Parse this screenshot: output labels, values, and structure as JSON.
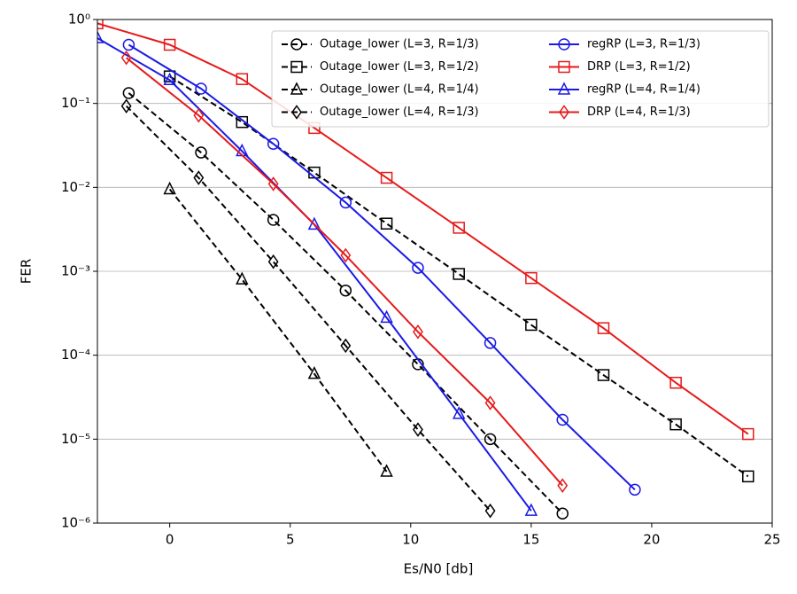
{
  "chart_data": {
    "type": "line",
    "x_label": "Es/N0 [db]",
    "y_label": "FER",
    "xlim": [
      -3,
      25
    ],
    "xticks": [
      0,
      5,
      10,
      15,
      20,
      25
    ],
    "ylim": [
      1e-06,
      1
    ],
    "y_scale": "log",
    "yticks": [
      {
        "value": 1e-06,
        "label": "10⁻⁶"
      },
      {
        "value": 1e-05,
        "label": "10⁻⁵"
      },
      {
        "value": 0.0001,
        "label": "10⁻⁴"
      },
      {
        "value": 0.001,
        "label": "10⁻³"
      },
      {
        "value": 0.01,
        "label": "10⁻²"
      },
      {
        "value": 0.1,
        "label": "10⁻¹"
      },
      {
        "value": 1,
        "label": "10⁰"
      }
    ],
    "grid": "y",
    "legend": "upper right",
    "series": [
      {
        "name": "Outage_lower (L=3, R=1/3)",
        "color": "#000000",
        "linestyle": "dashed",
        "marker": "circle",
        "x": [
          -1.7,
          1.3,
          4.3,
          7.3,
          10.3,
          13.3,
          16.3
        ],
        "values": [
          0.133,
          0.026,
          0.0041,
          0.00059,
          7.8e-05,
          1e-05,
          1.3e-06
        ]
      },
      {
        "name": "Outage_lower (L=3, R=1/2)",
        "color": "#000000",
        "linestyle": "dashed",
        "marker": "square",
        "x": [
          0,
          3,
          6,
          9,
          12,
          15,
          18,
          21,
          24
        ],
        "values": [
          0.21,
          0.06,
          0.015,
          0.0037,
          0.00093,
          0.00023,
          5.8e-05,
          1.5e-05,
          3.6e-06
        ]
      },
      {
        "name": "Outage_lower (L=4, R=1/4)",
        "color": "#000000",
        "linestyle": "dashed",
        "marker": "triangle",
        "x": [
          0,
          3,
          6,
          9
        ],
        "values": [
          0.0095,
          0.0008,
          6e-05,
          4.1e-06
        ]
      },
      {
        "name": "Outage_lower (L=4, R=1/3)",
        "color": "#000000",
        "linestyle": "dashed",
        "marker": "diamond",
        "x": [
          -1.8,
          1.2,
          4.3,
          7.3,
          10.3,
          13.3
        ],
        "values": [
          0.093,
          0.013,
          0.0013,
          0.00013,
          1.3e-05,
          1.4e-06
        ]
      },
      {
        "name": "regRP (L=3, R=1/3)",
        "color": "#1a1ae6",
        "linestyle": "solid",
        "marker": "circle",
        "x": [
          -1.7,
          1.3,
          4.3,
          7.3,
          10.3,
          13.3,
          16.3,
          19.3
        ],
        "values": [
          0.5,
          0.15,
          0.033,
          0.0066,
          0.0011,
          0.00014,
          1.7e-05,
          2.5e-06
        ]
      },
      {
        "name": "DRP (L=3, R=1/2)",
        "color": "#e61a1a",
        "linestyle": "solid",
        "marker": "square",
        "x": [
          -3,
          0,
          3,
          6,
          9,
          12,
          15,
          18,
          21,
          24
        ],
        "values": [
          0.9,
          0.5,
          0.195,
          0.051,
          0.013,
          0.0033,
          0.00083,
          0.00021,
          4.7e-05,
          1.15e-05
        ]
      },
      {
        "name": "regRP (L=4, R=1/4)",
        "color": "#1a1ae6",
        "linestyle": "solid",
        "marker": "triangle",
        "x": [
          -3,
          0,
          3,
          6,
          9,
          12,
          15
        ],
        "values": [
          0.6,
          0.19,
          0.027,
          0.0036,
          0.00028,
          2e-05,
          1.4e-06
        ]
      },
      {
        "name": "DRP (L=4, R=1/3)",
        "color": "#e61a1a",
        "linestyle": "solid",
        "marker": "diamond",
        "x": [
          -1.8,
          1.2,
          4.3,
          7.3,
          10.3,
          13.3,
          16.3
        ],
        "values": [
          0.35,
          0.072,
          0.011,
          0.00155,
          0.00019,
          2.7e-05,
          2.8e-06
        ]
      }
    ]
  }
}
